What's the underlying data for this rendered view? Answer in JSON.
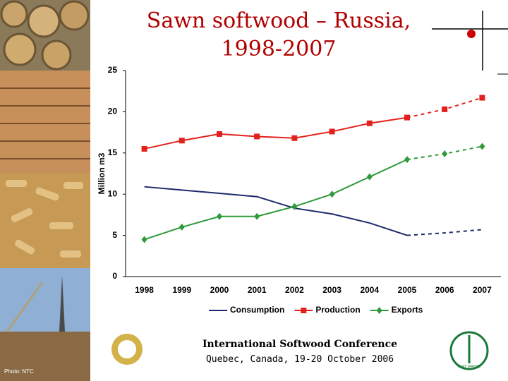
{
  "header": {
    "title": "Sawn softwood – Russia, 1998-2007"
  },
  "chart_data": {
    "type": "line",
    "y_label": "Million m3",
    "categories": [
      "1998",
      "1999",
      "2000",
      "2001",
      "2002",
      "2003",
      "2004",
      "2005",
      "2006",
      "2007"
    ],
    "series": [
      {
        "name": "Consumption",
        "color": "#1c2a6b",
        "marker": "none",
        "values": [
          10.9,
          10.5,
          10.1,
          9.7,
          8.3,
          7.6,
          6.5,
          5.0,
          5.3,
          5.7
        ]
      },
      {
        "name": "Production",
        "color": "#e3211c",
        "marker": "square",
        "values": [
          15.5,
          16.5,
          17.3,
          17.0,
          16.8,
          17.6,
          18.6,
          19.3,
          20.3,
          21.7
        ]
      },
      {
        "name": "Exports",
        "color": "#2f9a3a",
        "marker": "diamond",
        "values": [
          4.5,
          6.0,
          7.3,
          7.3,
          8.5,
          10.0,
          12.1,
          14.2,
          14.9,
          15.8
        ]
      }
    ],
    "forecast_from": "2005",
    "ylim": [
      0,
      25
    ],
    "yticks": [
      0,
      5,
      10,
      15,
      20,
      25
    ],
    "grid": false,
    "legend": "bottom"
  },
  "footer": {
    "conference": "International Softwood Conference",
    "place": "Quebec, Canada, 19-20 October 2006",
    "photo_credit": "Photo: NTC",
    "fao_motto": "FIAT PANIS"
  }
}
